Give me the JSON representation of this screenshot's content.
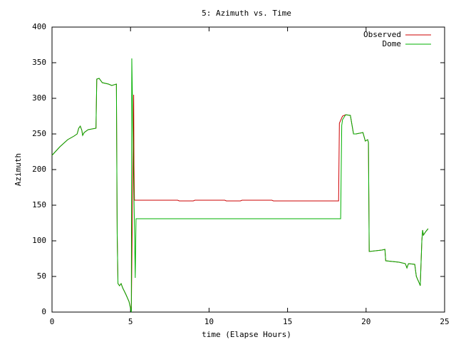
{
  "chart_data": {
    "type": "line",
    "title": "5: Azimuth vs. Time",
    "xlabel": "time (Elapse Hours)",
    "ylabel": "Azimuth",
    "xlim": [
      0,
      25
    ],
    "xticks": [
      0,
      5,
      10,
      15,
      20,
      25
    ],
    "ylim": [
      0,
      400
    ],
    "yticks": [
      0,
      50,
      100,
      150,
      200,
      250,
      300,
      350,
      400
    ],
    "grid": false,
    "legend": "top-right",
    "series": [
      {
        "name": "Observed",
        "color": "#cc0000",
        "x": [
          0,
          0.5,
          1,
          1.4,
          1.6,
          1.7,
          1.8,
          1.9,
          1.95,
          2.05,
          2.3,
          2.8,
          2.85,
          3.0,
          3.2,
          3.6,
          3.8,
          4.1,
          4.15,
          4.2,
          4.3,
          4.4,
          4.5,
          4.7,
          4.9,
          5.05,
          5.2,
          5.22,
          5.25,
          5.3,
          8.0,
          8.1,
          9.0,
          9.1,
          11.0,
          11.1,
          12.0,
          12.1,
          14.0,
          14.1,
          18.25,
          18.3,
          18.5,
          18.7,
          19.0,
          19.2,
          19.35,
          19.8,
          19.95,
          20.1,
          20.15,
          20.2,
          21.0,
          21.2,
          21.25,
          22.1,
          22.5,
          22.6,
          22.7,
          23.1,
          23.2,
          23.4,
          23.45,
          23.55,
          23.6,
          23.65,
          23.8,
          23.95
        ],
        "values": [
          220,
          232,
          242,
          247,
          250,
          258,
          261,
          255,
          248,
          252,
          256,
          258,
          327,
          328,
          322,
          320,
          318,
          320,
          110,
          40,
          37,
          40,
          34,
          25,
          15,
          2,
          305,
          205,
          157,
          157,
          157,
          156,
          156,
          157,
          157,
          156,
          156,
          157,
          157,
          156,
          156,
          265,
          275,
          277,
          276,
          250,
          250,
          252,
          240,
          242,
          238,
          85,
          87,
          88,
          72,
          70,
          68,
          62,
          68,
          67,
          50,
          40,
          37,
          100,
          115,
          108,
          113,
          117
        ]
      },
      {
        "name": "Dome",
        "color": "#00b000",
        "x": [
          0,
          0.5,
          1,
          1.4,
          1.6,
          1.7,
          1.8,
          1.9,
          1.95,
          2.05,
          2.3,
          2.8,
          2.85,
          3.0,
          3.2,
          3.6,
          3.8,
          4.1,
          4.15,
          4.2,
          4.3,
          4.4,
          4.5,
          4.7,
          4.9,
          5.05,
          5.08,
          5.3,
          5.35,
          18.38,
          18.45,
          18.5,
          18.7,
          19.0,
          19.2,
          19.35,
          19.8,
          19.95,
          20.1,
          20.15,
          20.2,
          21.0,
          21.2,
          21.25,
          22.1,
          22.5,
          22.6,
          22.7,
          23.1,
          23.2,
          23.4,
          23.45,
          23.55,
          23.6,
          23.65,
          23.8,
          23.95
        ],
        "values": [
          220,
          232,
          242,
          247,
          250,
          258,
          261,
          255,
          248,
          252,
          256,
          258,
          327,
          328,
          322,
          320,
          318,
          320,
          110,
          40,
          37,
          40,
          34,
          25,
          15,
          0,
          356,
          48,
          131,
          131,
          262,
          270,
          277,
          276,
          250,
          250,
          252,
          240,
          242,
          238,
          85,
          87,
          88,
          72,
          70,
          68,
          62,
          68,
          67,
          50,
          40,
          37,
          100,
          115,
          108,
          113,
          117
        ]
      }
    ]
  }
}
